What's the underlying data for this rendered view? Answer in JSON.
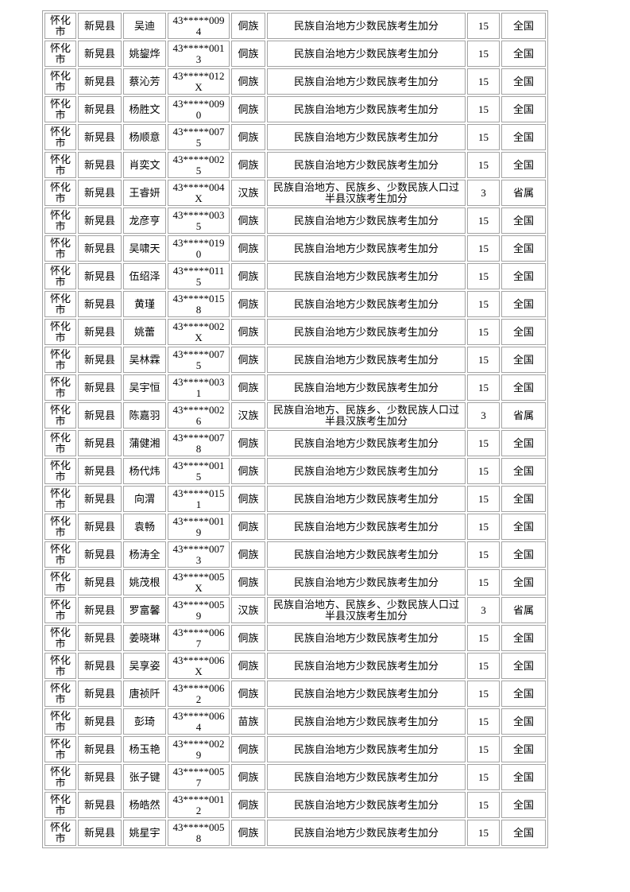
{
  "page": {
    "background_color": "#ffffff",
    "text_color": "#000000"
  },
  "table": {
    "border_color": "#a3a3a3",
    "rows": [
      {
        "city": "怀化市",
        "county": "新晃县",
        "name": "吴迪",
        "id": "43*****0094",
        "ethnicity": "侗族",
        "policy": "民族自治地方少数民族考生加分",
        "points": "15",
        "scope": "全国"
      },
      {
        "city": "怀化市",
        "county": "新晃县",
        "name": "姚鋆烨",
        "id": "43*****0013",
        "ethnicity": "侗族",
        "policy": "民族自治地方少数民族考生加分",
        "points": "15",
        "scope": "全国"
      },
      {
        "city": "怀化市",
        "county": "新晃县",
        "name": "蔡沁芳",
        "id": "43*****012X",
        "ethnicity": "侗族",
        "policy": "民族自治地方少数民族考生加分",
        "points": "15",
        "scope": "全国"
      },
      {
        "city": "怀化市",
        "county": "新晃县",
        "name": "杨胜文",
        "id": "43*****0090",
        "ethnicity": "侗族",
        "policy": "民族自治地方少数民族考生加分",
        "points": "15",
        "scope": "全国"
      },
      {
        "city": "怀化市",
        "county": "新晃县",
        "name": "杨顺意",
        "id": "43*****0075",
        "ethnicity": "侗族",
        "policy": "民族自治地方少数民族考生加分",
        "points": "15",
        "scope": "全国"
      },
      {
        "city": "怀化市",
        "county": "新晃县",
        "name": "肖奕文",
        "id": "43*****0025",
        "ethnicity": "侗族",
        "policy": "民族自治地方少数民族考生加分",
        "points": "15",
        "scope": "全国"
      },
      {
        "city": "怀化市",
        "county": "新晃县",
        "name": "王睿妍",
        "id": "43*****004X",
        "ethnicity": "汉族",
        "policy": "民族自治地方、民族乡、少数民族人口过半县汉族考生加分",
        "points": "3",
        "scope": "省属"
      },
      {
        "city": "怀化市",
        "county": "新晃县",
        "name": "龙彦亨",
        "id": "43*****0035",
        "ethnicity": "侗族",
        "policy": "民族自治地方少数民族考生加分",
        "points": "15",
        "scope": "全国"
      },
      {
        "city": "怀化市",
        "county": "新晃县",
        "name": "吴啸天",
        "id": "43*****0190",
        "ethnicity": "侗族",
        "policy": "民族自治地方少数民族考生加分",
        "points": "15",
        "scope": "全国"
      },
      {
        "city": "怀化市",
        "county": "新晃县",
        "name": "伍绍泽",
        "id": "43*****0115",
        "ethnicity": "侗族",
        "policy": "民族自治地方少数民族考生加分",
        "points": "15",
        "scope": "全国"
      },
      {
        "city": "怀化市",
        "county": "新晃县",
        "name": "黄瑾",
        "id": "43*****0158",
        "ethnicity": "侗族",
        "policy": "民族自治地方少数民族考生加分",
        "points": "15",
        "scope": "全国"
      },
      {
        "city": "怀化市",
        "county": "新晃县",
        "name": "姚蕾",
        "id": "43*****002X",
        "ethnicity": "侗族",
        "policy": "民族自治地方少数民族考生加分",
        "points": "15",
        "scope": "全国"
      },
      {
        "city": "怀化市",
        "county": "新晃县",
        "name": "吴林霖",
        "id": "43*****0075",
        "ethnicity": "侗族",
        "policy": "民族自治地方少数民族考生加分",
        "points": "15",
        "scope": "全国"
      },
      {
        "city": "怀化市",
        "county": "新晃县",
        "name": "吴宇恒",
        "id": "43*****0031",
        "ethnicity": "侗族",
        "policy": "民族自治地方少数民族考生加分",
        "points": "15",
        "scope": "全国"
      },
      {
        "city": "怀化市",
        "county": "新晃县",
        "name": "陈嘉羽",
        "id": "43*****0026",
        "ethnicity": "汉族",
        "policy": "民族自治地方、民族乡、少数民族人口过半县汉族考生加分",
        "points": "3",
        "scope": "省属"
      },
      {
        "city": "怀化市",
        "county": "新晃县",
        "name": "蒲健湘",
        "id": "43*****0078",
        "ethnicity": "侗族",
        "policy": "民族自治地方少数民族考生加分",
        "points": "15",
        "scope": "全国"
      },
      {
        "city": "怀化市",
        "county": "新晃县",
        "name": "杨代炜",
        "id": "43*****0015",
        "ethnicity": "侗族",
        "policy": "民族自治地方少数民族考生加分",
        "points": "15",
        "scope": "全国"
      },
      {
        "city": "怀化市",
        "county": "新晃县",
        "name": "向渭",
        "id": "43*****0151",
        "ethnicity": "侗族",
        "policy": "民族自治地方少数民族考生加分",
        "points": "15",
        "scope": "全国"
      },
      {
        "city": "怀化市",
        "county": "新晃县",
        "name": "袁畅",
        "id": "43*****0019",
        "ethnicity": "侗族",
        "policy": "民族自治地方少数民族考生加分",
        "points": "15",
        "scope": "全国"
      },
      {
        "city": "怀化市",
        "county": "新晃县",
        "name": "杨涛全",
        "id": "43*****0073",
        "ethnicity": "侗族",
        "policy": "民族自治地方少数民族考生加分",
        "points": "15",
        "scope": "全国"
      },
      {
        "city": "怀化市",
        "county": "新晃县",
        "name": "姚茂根",
        "id": "43*****005X",
        "ethnicity": "侗族",
        "policy": "民族自治地方少数民族考生加分",
        "points": "15",
        "scope": "全国"
      },
      {
        "city": "怀化市",
        "county": "新晃县",
        "name": "罗富馨",
        "id": "43*****0059",
        "ethnicity": "汉族",
        "policy": "民族自治地方、民族乡、少数民族人口过半县汉族考生加分",
        "points": "3",
        "scope": "省属"
      },
      {
        "city": "怀化市",
        "county": "新晃县",
        "name": "姜晓琳",
        "id": "43*****0067",
        "ethnicity": "侗族",
        "policy": "民族自治地方少数民族考生加分",
        "points": "15",
        "scope": "全国"
      },
      {
        "city": "怀化市",
        "county": "新晃县",
        "name": "吴享姿",
        "id": "43*****006X",
        "ethnicity": "侗族",
        "policy": "民族自治地方少数民族考生加分",
        "points": "15",
        "scope": "全国"
      },
      {
        "city": "怀化市",
        "county": "新晃县",
        "name": "唐祯阡",
        "id": "43*****0062",
        "ethnicity": "侗族",
        "policy": "民族自治地方少数民族考生加分",
        "points": "15",
        "scope": "全国"
      },
      {
        "city": "怀化市",
        "county": "新晃县",
        "name": "彭琦",
        "id": "43*****0064",
        "ethnicity": "苗族",
        "policy": "民族自治地方少数民族考生加分",
        "points": "15",
        "scope": "全国"
      },
      {
        "city": "怀化市",
        "county": "新晃县",
        "name": "杨玉艳",
        "id": "43*****0029",
        "ethnicity": "侗族",
        "policy": "民族自治地方少数民族考生加分",
        "points": "15",
        "scope": "全国"
      },
      {
        "city": "怀化市",
        "county": "新晃县",
        "name": "张子键",
        "id": "43*****0057",
        "ethnicity": "侗族",
        "policy": "民族自治地方少数民族考生加分",
        "points": "15",
        "scope": "全国"
      },
      {
        "city": "怀化市",
        "county": "新晃县",
        "name": "杨皓然",
        "id": "43*****0012",
        "ethnicity": "侗族",
        "policy": "民族自治地方少数民族考生加分",
        "points": "15",
        "scope": "全国"
      },
      {
        "city": "怀化市",
        "county": "新晃县",
        "name": "姚星宇",
        "id": "43*****0058",
        "ethnicity": "侗族",
        "policy": "民族自治地方少数民族考生加分",
        "points": "15",
        "scope": "全国"
      }
    ]
  }
}
